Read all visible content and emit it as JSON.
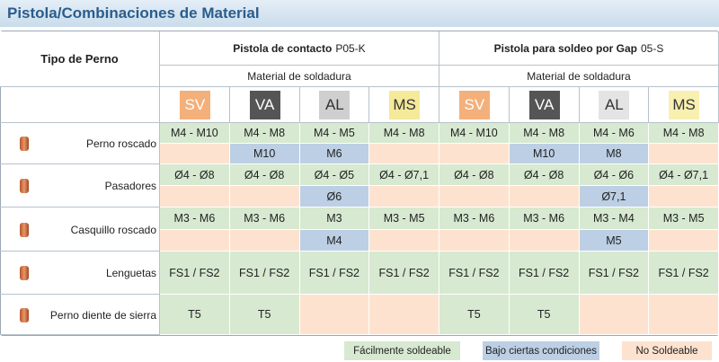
{
  "title": "Pistola/Combinaciones de Material",
  "header": {
    "first": "Tipo de Perno",
    "groups": [
      {
        "name": "Pistola de contacto",
        "code": "P05-K",
        "sub": "Material de soldadura",
        "materials": [
          {
            "label": "SV",
            "color": "#f4b07a",
            "text_color": "#ffffff"
          },
          {
            "label": "VA",
            "color": "#555555",
            "text_color": "#ffffff"
          },
          {
            "label": "AL",
            "color": "#cfcfcf",
            "text_color": "#333333"
          },
          {
            "label": "MS",
            "color": "#f5e99a",
            "text_color": "#333333"
          }
        ]
      },
      {
        "name": "Pistola para soldeo por Gap",
        "code": "05-S",
        "sub": "Material de soldadura",
        "materials": [
          {
            "label": "SV",
            "color": "#f4b07a",
            "text_color": "#ffffff"
          },
          {
            "label": "VA",
            "color": "#555555",
            "text_color": "#ffffff"
          },
          {
            "label": "AL",
            "color": "#e4e4e4",
            "text_color": "#333333"
          },
          {
            "label": "MS",
            "color": "#f8f0b0",
            "text_color": "#333333"
          }
        ]
      }
    ]
  },
  "rows": [
    {
      "label": "Perno roscado",
      "lines": [
        [
          {
            "text": "M4 - M10",
            "color": "#d7e9d1"
          },
          {
            "text": "M4 - M8",
            "color": "#d7e9d1"
          },
          {
            "text": "M4 - M5",
            "color": "#d7e9d1"
          },
          {
            "text": "M4 - M8",
            "color": "#d7e9d1"
          },
          {
            "text": "M4 - M10",
            "color": "#d7e9d1"
          },
          {
            "text": "M4 - M8",
            "color": "#d7e9d1"
          },
          {
            "text": "M4 - M6",
            "color": "#d7e9d1"
          },
          {
            "text": "M4 - M8",
            "color": "#d7e9d1"
          }
        ],
        [
          {
            "color": "#fde3cf"
          },
          {
            "text": "M10",
            "color": "#bccfe4"
          },
          {
            "text": "M6",
            "color": "#bccfe4"
          },
          {
            "color": "#fde3cf"
          },
          {
            "color": "#fde3cf"
          },
          {
            "text": "M10",
            "color": "#bccfe4"
          },
          {
            "text": "M8",
            "color": "#bccfe4"
          },
          {
            "color": "#fde3cf"
          }
        ]
      ]
    },
    {
      "label": "Pasadores",
      "lines": [
        [
          {
            "text": "Ø4 - Ø8",
            "color": "#d7e9d1"
          },
          {
            "text": "Ø4 - Ø8",
            "color": "#d7e9d1"
          },
          {
            "text": "Ø4 - Ø5",
            "color": "#d7e9d1"
          },
          {
            "text": "Ø4 - Ø7,1",
            "color": "#d7e9d1"
          },
          {
            "text": "Ø4 - Ø8",
            "color": "#d7e9d1"
          },
          {
            "text": "Ø4 - Ø8",
            "color": "#d7e9d1"
          },
          {
            "text": "Ø4 - Ø6",
            "color": "#d7e9d1"
          },
          {
            "text": "Ø4 - Ø7,1",
            "color": "#d7e9d1"
          }
        ],
        [
          {
            "color": "#fde3cf"
          },
          {
            "color": "#fde3cf"
          },
          {
            "text": "Ø6",
            "color": "#bccfe4"
          },
          {
            "color": "#fde3cf"
          },
          {
            "color": "#fde3cf"
          },
          {
            "color": "#fde3cf"
          },
          {
            "text": "Ø7,1",
            "color": "#bccfe4"
          },
          {
            "color": "#fde3cf"
          }
        ]
      ]
    },
    {
      "label": "Casquillo roscado",
      "lines": [
        [
          {
            "text": "M3 - M6",
            "color": "#d7e9d1"
          },
          {
            "text": "M3 - M6",
            "color": "#d7e9d1"
          },
          {
            "text": "M3",
            "color": "#d7e9d1"
          },
          {
            "text": "M3 - M5",
            "color": "#d7e9d1"
          },
          {
            "text": "M3 - M6",
            "color": "#d7e9d1"
          },
          {
            "text": "M3 - M6",
            "color": "#d7e9d1"
          },
          {
            "text": "M3 - M4",
            "color": "#d7e9d1"
          },
          {
            "text": "M3 - M5",
            "color": "#d7e9d1"
          }
        ],
        [
          {
            "color": "#fde3cf"
          },
          {
            "color": "#fde3cf"
          },
          {
            "text": "M4",
            "color": "#bccfe4"
          },
          {
            "color": "#fde3cf"
          },
          {
            "color": "#fde3cf"
          },
          {
            "color": "#fde3cf"
          },
          {
            "text": "M5",
            "color": "#bccfe4"
          },
          {
            "color": "#fde3cf"
          }
        ]
      ]
    },
    {
      "label": "Lenguetas",
      "lines": [
        [
          {
            "text": "FS1 / FS2",
            "color": "#d7e9d1"
          },
          {
            "text": "FS1 / FS2",
            "color": "#d7e9d1"
          },
          {
            "text": "FS1 / FS2",
            "color": "#d7e9d1"
          },
          {
            "text": "FS1 / FS2",
            "color": "#d7e9d1"
          },
          {
            "text": "FS1 / FS2",
            "color": "#d7e9d1"
          },
          {
            "text": "FS1 / FS2",
            "color": "#d7e9d1"
          },
          {
            "text": "FS1 / FS2",
            "color": "#d7e9d1"
          },
          {
            "text": "FS1 / FS2",
            "color": "#d7e9d1"
          }
        ]
      ]
    },
    {
      "label": "Perno diente de sierra",
      "lines": [
        [
          {
            "text": "T5",
            "color": "#d7e9d1"
          },
          {
            "text": "T5",
            "color": "#d7e9d1"
          },
          {
            "color": "#fde3cf"
          },
          {
            "color": "#fde3cf"
          },
          {
            "text": "T5",
            "color": "#d7e9d1"
          },
          {
            "text": "T5",
            "color": "#d7e9d1"
          },
          {
            "color": "#fde3cf"
          },
          {
            "color": "#fde3cf"
          }
        ]
      ]
    }
  ],
  "legend": [
    {
      "label": "Fácilmente soldeable",
      "color": "#d7e9d1"
    },
    {
      "label": "Bajo ciertas condiciones",
      "color": "#bccfe4"
    },
    {
      "label": "No Soldeable",
      "color": "#fde3cf"
    }
  ]
}
